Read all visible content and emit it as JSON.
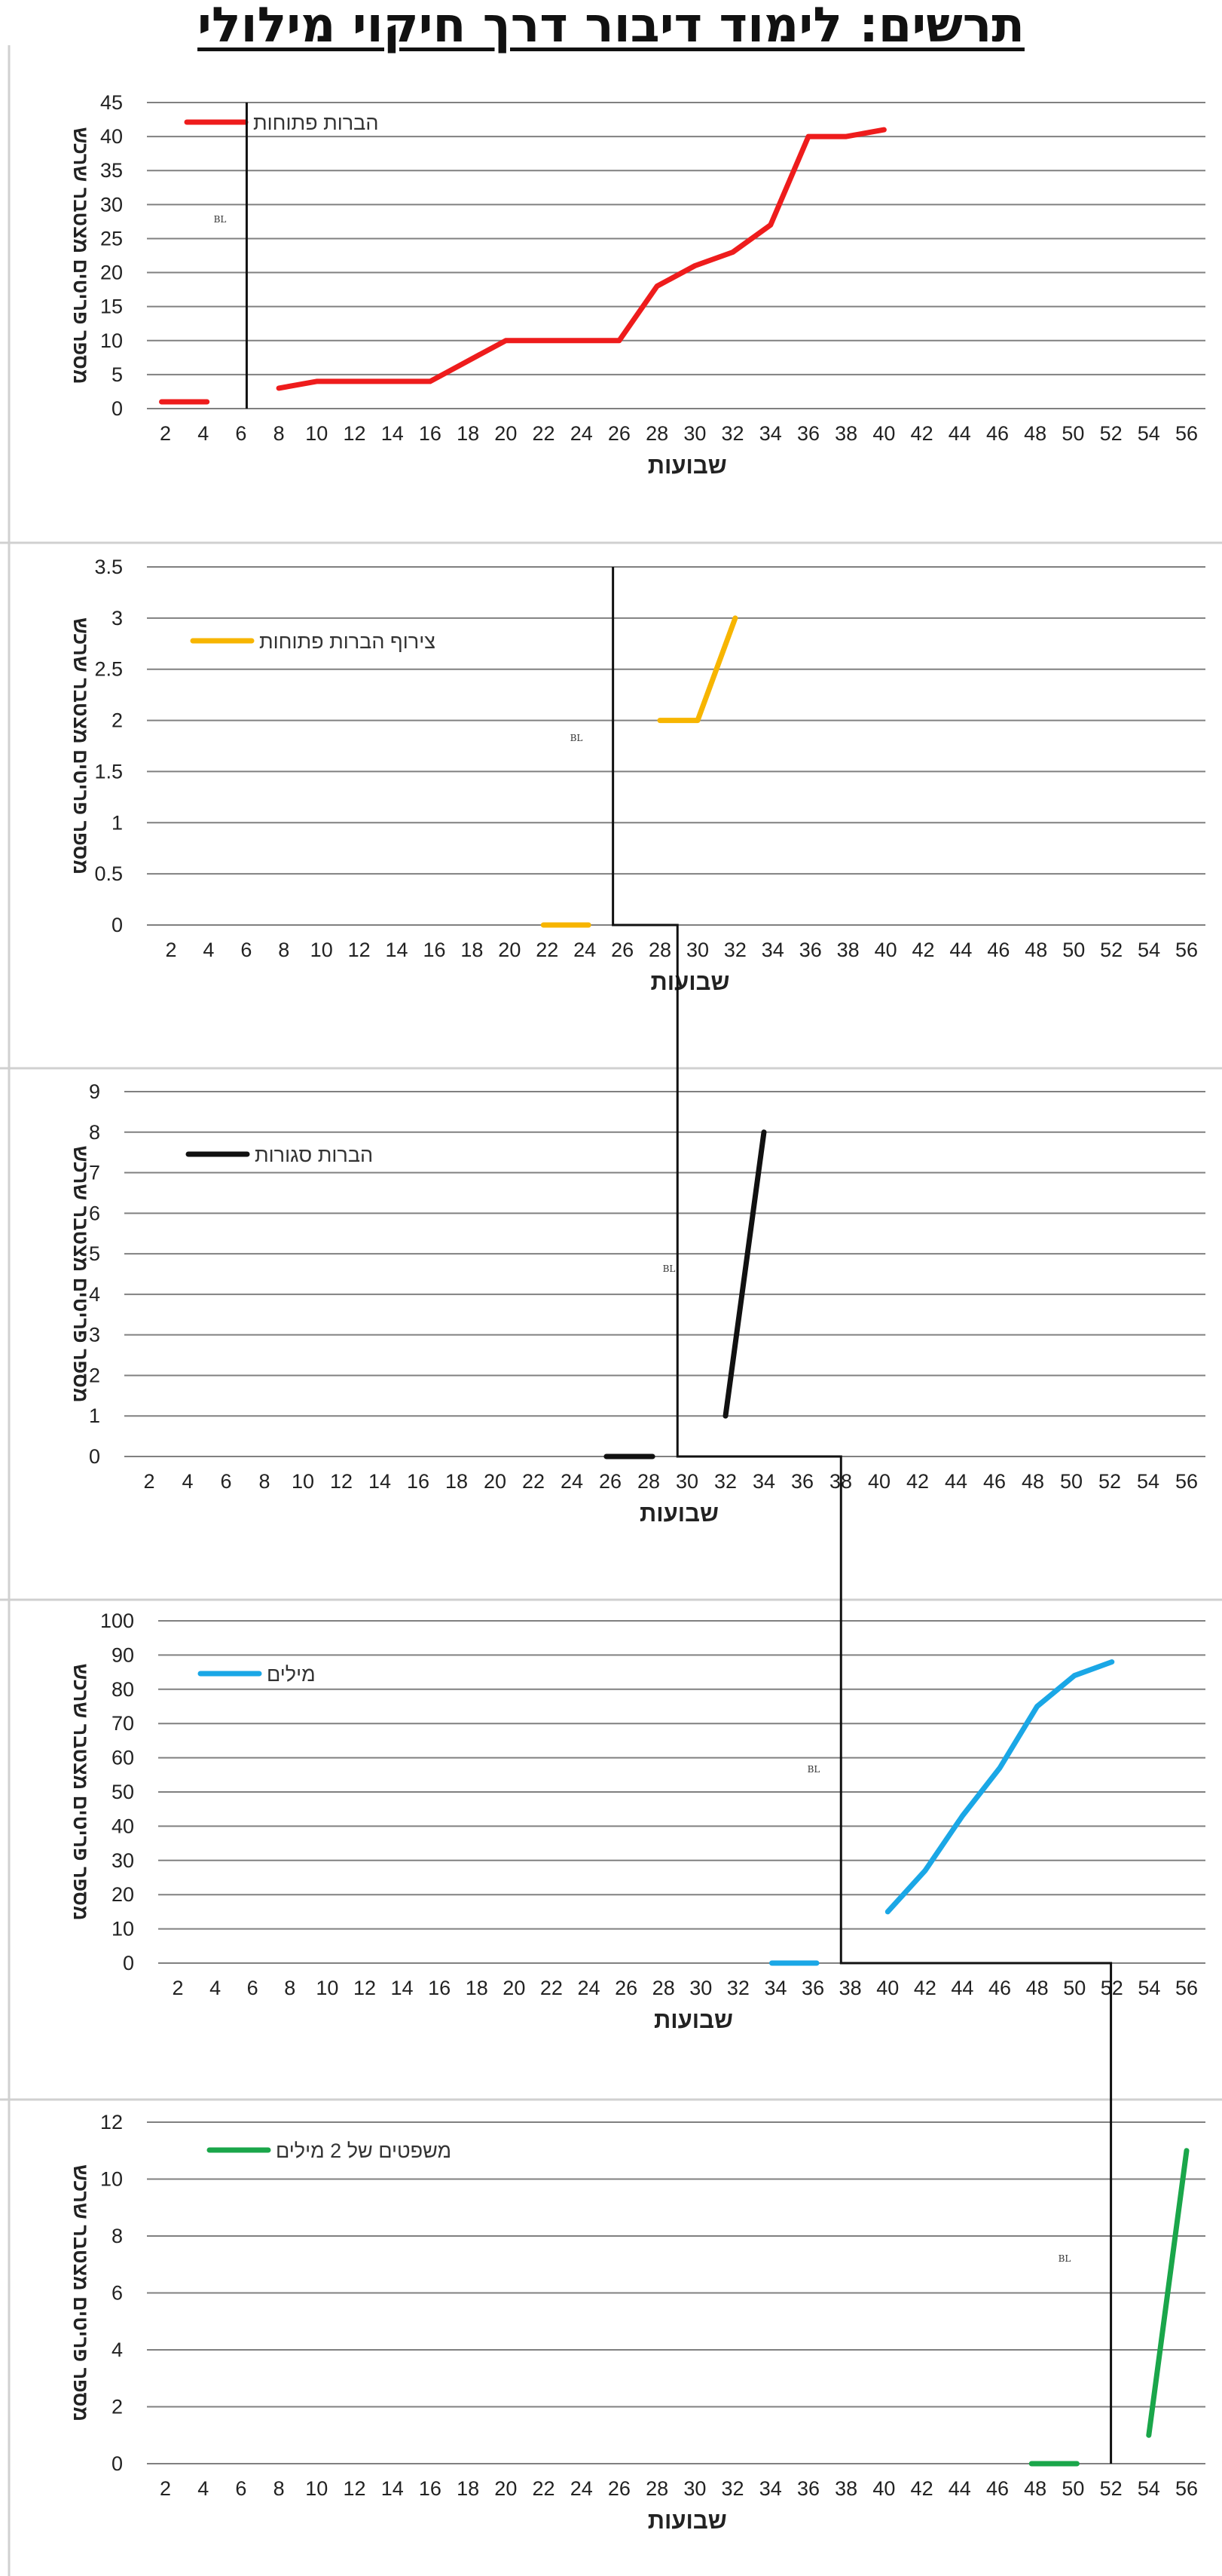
{
  "title": "תרשים: לימוד דיבור דרך חיקוי מילולי",
  "chart_data": [
    {
      "type": "line",
      "ylim": [
        0,
        45
      ],
      "ystep": 5,
      "xlabel": "שבועות",
      "ylabel": "מספר פריטים מצטבר שרכש",
      "x_ticks": [
        2,
        4,
        6,
        8,
        10,
        12,
        14,
        16,
        18,
        20,
        22,
        24,
        26,
        28,
        30,
        32,
        34,
        36,
        38,
        40,
        42,
        44,
        46,
        48,
        50,
        52,
        54,
        56
      ],
      "baseline_label": "BL",
      "baseline_week": 6.3,
      "series": [
        {
          "name": "הברות פתוחות",
          "color": "#ee1c1c",
          "segments": [
            [
              [
                1.8,
                1
              ],
              [
                4.2,
                1
              ]
            ],
            [
              [
                8,
                3
              ],
              [
                10,
                4
              ],
              [
                12,
                4
              ],
              [
                14,
                4
              ],
              [
                16,
                4
              ],
              [
                18,
                7
              ],
              [
                20,
                10
              ],
              [
                22,
                10
              ],
              [
                24,
                10
              ],
              [
                26,
                10
              ],
              [
                28,
                18
              ],
              [
                30,
                21
              ],
              [
                32,
                23
              ],
              [
                34,
                27
              ],
              [
                36,
                40
              ],
              [
                38,
                40
              ],
              [
                40,
                41
              ]
            ]
          ]
        }
      ]
    },
    {
      "type": "line",
      "ylim": [
        0,
        3.5
      ],
      "ystep": 0.5,
      "xlabel": "שבועות",
      "ylabel": "מספר פריטים מצטבר שרכש",
      "x_ticks": [
        2,
        4,
        6,
        8,
        10,
        12,
        14,
        16,
        18,
        20,
        22,
        24,
        26,
        28,
        30,
        32,
        34,
        36,
        38,
        40,
        42,
        44,
        46,
        48,
        50,
        52,
        54,
        56
      ],
      "baseline_label": "BL",
      "baseline_week": 25.5,
      "series": [
        {
          "name": "צירוף הברות פתוחות",
          "color": "#f7b500",
          "segments": [
            [
              [
                21.8,
                0
              ],
              [
                24.2,
                0
              ]
            ],
            [
              [
                28,
                2
              ],
              [
                30,
                2
              ],
              [
                32,
                3
              ]
            ]
          ]
        }
      ]
    },
    {
      "type": "line",
      "ylim": [
        0,
        9
      ],
      "ystep": 1,
      "xlabel": "שבועות",
      "ylabel": "מספר פריטים מצטבר שרכש",
      "x_ticks": [
        2,
        4,
        6,
        8,
        10,
        12,
        14,
        16,
        18,
        20,
        22,
        24,
        26,
        28,
        30,
        32,
        34,
        36,
        38,
        40,
        42,
        44,
        46,
        48,
        50,
        52,
        54,
        56
      ],
      "baseline_label": "BL",
      "baseline_week": 29.5,
      "series": [
        {
          "name": "הברות סגורות",
          "color": "#111111",
          "segments": [
            [
              [
                25.8,
                0
              ],
              [
                28.2,
                0
              ]
            ],
            [
              [
                32,
                1
              ],
              [
                34,
                8
              ]
            ]
          ]
        }
      ]
    },
    {
      "type": "line",
      "ylim": [
        0,
        100
      ],
      "ystep": 10,
      "xlabel": "שבועות",
      "ylabel": "מספר פריטים מצטבר שרכש",
      "x_ticks": [
        2,
        4,
        6,
        8,
        10,
        12,
        14,
        16,
        18,
        20,
        22,
        24,
        26,
        28,
        30,
        32,
        34,
        36,
        38,
        40,
        42,
        44,
        46,
        48,
        50,
        52,
        54,
        56
      ],
      "baseline_label": "BL",
      "baseline_week": 37.5,
      "series": [
        {
          "name": "מילים",
          "color": "#1aa7e6",
          "segments": [
            [
              [
                33.8,
                0
              ],
              [
                36.2,
                0
              ]
            ],
            [
              [
                40,
                15
              ],
              [
                42,
                27
              ],
              [
                44,
                43
              ],
              [
                46,
                57
              ],
              [
                48,
                75
              ],
              [
                50,
                84
              ],
              [
                52,
                88
              ]
            ]
          ]
        }
      ]
    },
    {
      "type": "line",
      "ylim": [
        0,
        12
      ],
      "ystep": 2,
      "xlabel": "שבועות",
      "ylabel": "מספר פריטים מצטבר שרכש",
      "x_ticks": [
        2,
        4,
        6,
        8,
        10,
        12,
        14,
        16,
        18,
        20,
        22,
        24,
        26,
        28,
        30,
        32,
        34,
        36,
        38,
        40,
        42,
        44,
        46,
        48,
        50,
        52,
        54,
        56
      ],
      "baseline_label": "BL",
      "baseline_week": 52.0,
      "series": [
        {
          "name": "משפטים של 2 מילים",
          "color": "#1aa64a",
          "segments": [
            [
              [
                47.8,
                0
              ],
              [
                50.2,
                0
              ]
            ],
            [
              [
                54,
                1
              ],
              [
                56,
                11
              ]
            ]
          ]
        }
      ]
    }
  ]
}
